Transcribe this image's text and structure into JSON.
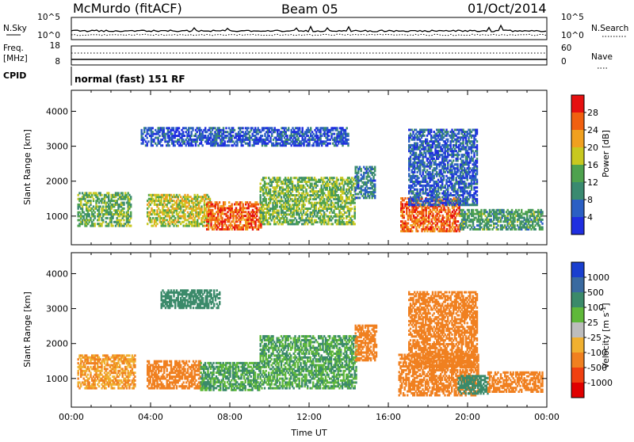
{
  "header": {
    "station": "McMurdo (fitACF)",
    "beam": "Beam 05",
    "date": "01/Oct/2014"
  },
  "strip": {
    "nsky_label": "N.Sky",
    "nsearch_label": "N.Search",
    "sky_tick_hi": "10^5",
    "sky_tick_lo": "10^0",
    "freq_label": "Freq.",
    "freq_unit": "[MHz]",
    "freq_tick_hi": "18",
    "freq_tick_lo": "8",
    "nave_tick_hi": "60",
    "nave_tick_lo": "0",
    "nave_label": "Nave",
    "cpid_label": "CPID",
    "cpid_value": "normal (fast) 151 RF"
  },
  "colors": {
    "power_scale": [
      "#1f2ee0",
      "#2b5fc4",
      "#3a8a70",
      "#4ea24e",
      "#c8c820",
      "#f0a020",
      "#f06010",
      "#e61010"
    ],
    "velocity_scale": [
      "#1a3fcf",
      "#3a6aa0",
      "#3b8a6a",
      "#5fb83a",
      "#bdbdbd",
      "#f0b030",
      "#f08020",
      "#f04010",
      "#e00000"
    ],
    "frame": "#000000"
  },
  "chart_data": [
    {
      "type": "heatmap",
      "name": "power",
      "ylabel": "Slant Range [km]",
      "yticks": [
        1000,
        2000,
        3000,
        4000
      ],
      "ylim": [
        180,
        4600
      ],
      "xlim": [
        0,
        24
      ],
      "colorbar": {
        "label": "Power [dB]",
        "ticks": [
          "4",
          "8",
          "12",
          "16",
          "20",
          "24",
          "28"
        ],
        "range": [
          0,
          32
        ]
      },
      "regions": [
        {
          "t0": 0.3,
          "t1": 3.0,
          "r0": 700,
          "r1": 1650,
          "v": 14
        },
        {
          "t0": 3.8,
          "t1": 7.0,
          "r0": 700,
          "r1": 1600,
          "v": 18
        },
        {
          "t0": 6.8,
          "t1": 9.6,
          "r0": 600,
          "r1": 1400,
          "v": 26
        },
        {
          "t0": 9.5,
          "t1": 14.3,
          "r0": 750,
          "r1": 2100,
          "v": 15
        },
        {
          "t0": 14.3,
          "t1": 15.3,
          "r0": 1500,
          "r1": 2400,
          "v": 8
        },
        {
          "t0": 16.6,
          "t1": 19.6,
          "r0": 550,
          "r1": 1500,
          "v": 26
        },
        {
          "t0": 17.0,
          "t1": 20.5,
          "r0": 1300,
          "r1": 3500,
          "v": 6
        },
        {
          "t0": 19.6,
          "t1": 23.8,
          "r0": 600,
          "r1": 1200,
          "v": 12
        },
        {
          "t0": 3.5,
          "t1": 14.0,
          "r0": 3000,
          "r1": 3500,
          "v": 5
        }
      ]
    },
    {
      "type": "heatmap",
      "name": "velocity",
      "ylabel": "Slant Range [km]",
      "xlabel": "Time UT",
      "yticks": [
        1000,
        2000,
        3000,
        4000
      ],
      "ylim": [
        180,
        4600
      ],
      "xlim": [
        0,
        24
      ],
      "xticks": [
        "00:00",
        "04:00",
        "08:00",
        "12:00",
        "16:00",
        "20:00",
        "00:00"
      ],
      "colorbar": {
        "label": "Velocity [m s^-1]",
        "ticks": [
          "1000",
          "500",
          "100",
          "25",
          "-25",
          "-100",
          "-500",
          "-1000"
        ]
      },
      "regions": [
        {
          "t0": 0.3,
          "t1": 3.2,
          "r0": 700,
          "r1": 1650,
          "v": -100
        },
        {
          "t0": 3.8,
          "t1": 6.5,
          "r0": 700,
          "r1": 1500,
          "v": -200
        },
        {
          "t0": 6.5,
          "t1": 9.5,
          "r0": 650,
          "r1": 1450,
          "v": 100
        },
        {
          "t0": 9.5,
          "t1": 14.4,
          "r0": 700,
          "r1": 2200,
          "v": 100
        },
        {
          "t0": 14.3,
          "t1": 15.4,
          "r0": 1500,
          "r1": 2500,
          "v": -300
        },
        {
          "t0": 16.5,
          "t1": 20.5,
          "r0": 500,
          "r1": 1700,
          "v": -300
        },
        {
          "t0": 17.0,
          "t1": 20.5,
          "r0": 1300,
          "r1": 3500,
          "v": -250
        },
        {
          "t0": 19.5,
          "t1": 21.0,
          "r0": 550,
          "r1": 1100,
          "v": 200
        },
        {
          "t0": 21.0,
          "t1": 23.8,
          "r0": 600,
          "r1": 1200,
          "v": -300
        },
        {
          "t0": 4.5,
          "t1": 7.5,
          "r0": 3000,
          "r1": 3500,
          "v": 300
        }
      ]
    }
  ]
}
